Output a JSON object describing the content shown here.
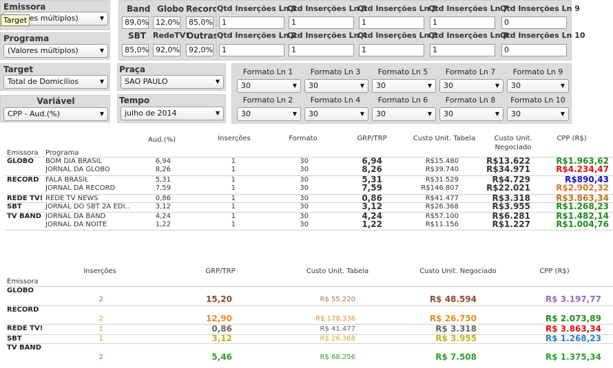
{
  "filters": {
    "emissora": {
      "label": "Emissora",
      "value": "(Valores múltiplos)"
    },
    "tooltip": "Target",
    "programa": {
      "label": "Programa",
      "value": "(Valores múltiplos)"
    },
    "target": {
      "label": "Target",
      "value": "Total de Domicílios"
    },
    "variavel": {
      "label": "Variável",
      "value": "CPP - Aud.(%)"
    },
    "praca": {
      "label": "Praça",
      "value": "SAO PAULO"
    },
    "tempo": {
      "label": "Tempo",
      "value": "julho de 2014"
    }
  },
  "shares": {
    "band": {
      "label": "Band",
      "value": "89,0%"
    },
    "globo": {
      "label": "Globo",
      "value": "12,0%"
    },
    "record": {
      "label": "Record",
      "value": "85,0%"
    },
    "sbt": {
      "label": "SBT",
      "value": "85,0%"
    },
    "redetv": {
      "label": "RedeTV!",
      "value": "92,0%"
    },
    "outras": {
      "label": "Outras",
      "value": "92,0%"
    }
  },
  "qtd": [
    {
      "label": "Qtd Inserções Ln 1",
      "value": "1"
    },
    {
      "label": "Qtd Inserções Ln 3",
      "value": "1"
    },
    {
      "label": "Qtd Inserções Ln 5",
      "value": "1"
    },
    {
      "label": "Qtd Inserções Ln 7",
      "value": "1"
    },
    {
      "label": "Qtd Inserções Ln 9",
      "value": "0"
    },
    {
      "label": "Qtd Inserções Ln 2",
      "value": "1"
    },
    {
      "label": "Qtd Inserções Ln 4",
      "value": "1"
    },
    {
      "label": "Qtd Inserções Ln 6",
      "value": "1"
    },
    {
      "label": "Qtd Inserções Ln 8",
      "value": "1"
    },
    {
      "label": "Qtd Inserções Ln 10",
      "value": "0"
    }
  ],
  "formato": [
    {
      "label": "Formato Ln 1",
      "value": "30"
    },
    {
      "label": "Formato Ln 3",
      "value": "30"
    },
    {
      "label": "Formato Ln 5",
      "value": "30"
    },
    {
      "label": "Formato Ln 7",
      "value": "30"
    },
    {
      "label": "Formato Ln 9",
      "value": "30"
    },
    {
      "label": "Formato Ln 2",
      "value": "30"
    },
    {
      "label": "Formato Ln 4",
      "value": "30"
    },
    {
      "label": "Formato Ln 6",
      "value": "30"
    },
    {
      "label": "Formato Ln 8",
      "value": "30"
    },
    {
      "label": "Formato Ln 10",
      "value": "30"
    }
  ],
  "table1": {
    "headers": {
      "emissora": "Emissora",
      "programa": "Programa",
      "aud": "Aud.(%)",
      "insercoes": "Inserções",
      "formato": "Formato",
      "grp": "GRP/TRP",
      "custo_tabela": "Custo Unit. Tabela",
      "custo_negociado_1": "Custo Unit.",
      "custo_negociado_2": "Negociado",
      "cpp": "CPP (R$)"
    },
    "rows": [
      {
        "emissora": "GLOBO",
        "programa": "BOM DIA BRASIL",
        "aud": "6,94",
        "ins": "1",
        "fmt": "30",
        "grp": "6,94",
        "tab": "R$15.480",
        "neg": "R$13.622",
        "cpp": "R$1.963,62",
        "cpp_color": "#1e8c1e"
      },
      {
        "emissora": "",
        "programa": "JORNAL DA GLOBO",
        "aud": "8,26",
        "ins": "1",
        "fmt": "30",
        "grp": "8,26",
        "tab": "R$39.740",
        "neg": "R$34.971",
        "cpp": "R$4.234,47",
        "cpp_color": "#e01010"
      },
      {
        "emissora": "RECORD",
        "programa": "FALA BRASIL",
        "aud": "5,31",
        "ins": "1",
        "fmt": "30",
        "grp": "5,31",
        "tab": "R$31.529",
        "neg": "R$4.729",
        "cpp": "R$890,43",
        "cpp_color": "#1010d0"
      },
      {
        "emissora": "",
        "programa": "JORNAL DA RECORD",
        "aud": "7,59",
        "ins": "1",
        "fmt": "30",
        "grp": "7,59",
        "tab": "R$146.807",
        "neg": "R$22.021",
        "cpp": "R$2.902,32",
        "cpp_color": "#d07a28"
      },
      {
        "emissora": "REDE TV!",
        "programa": "REDE TV NEWS",
        "aud": "0,86",
        "ins": "1",
        "fmt": "30",
        "grp": "0,86",
        "tab": "R$41.477",
        "neg": "R$3.318",
        "cpp": "R$3.863,34",
        "cpp_color": "#c07020"
      },
      {
        "emissora": "SBT",
        "programa": "JORNAL DO SBT 2A EDI..",
        "aud": "3,12",
        "ins": "1",
        "fmt": "30",
        "grp": "3,12",
        "tab": "R$26.368",
        "neg": "R$3.955",
        "cpp": "R$1.268,23",
        "cpp_color": "#1e8c1e"
      },
      {
        "emissora": "TV BAND",
        "programa": "JORNAL DA BAND",
        "aud": "4,24",
        "ins": "1",
        "fmt": "30",
        "grp": "4,24",
        "tab": "R$57.100",
        "neg": "R$6.281",
        "cpp": "R$1.482,14",
        "cpp_color": "#1e8c1e"
      },
      {
        "emissora": "",
        "programa": "JORNAL DA NOITE",
        "aud": "1,22",
        "ins": "1",
        "fmt": "30",
        "grp": "1,22",
        "tab": "R$11.156",
        "neg": "R$1.227",
        "cpp": "R$1.004,76",
        "cpp_color": "#1e8c1e"
      }
    ]
  },
  "table2": {
    "headers": {
      "emissora": "Emissora",
      "insercoes": "Inserções",
      "grp": "GRP/TRP",
      "tab": "Custo Unit. Tabela",
      "neg": "Custo Unit. Negociado",
      "cpp": "CPP (R$)"
    },
    "rows": [
      {
        "emissora": "GLOBO",
        "ins": "2",
        "grp": "15,20",
        "tab": "R$ 55.220",
        "neg": "R$ 48.594",
        "cpp": "R$ 3.197,77",
        "color": "#8c4a2a",
        "cpp_color": "#9a6ac0",
        "ins_color": "#b0601a",
        "tab_color": "#b07050"
      },
      {
        "emissora": "RECORD",
        "ins": "2",
        "grp": "12,90",
        "tab": "R$ 178.336",
        "neg": "R$ 26.750",
        "cpp": "R$ 2.073,89",
        "color": "#f08a1c",
        "cpp_color": "#1e8c1e",
        "ins_color": "#f08a1c",
        "tab_color": "#f08a1c"
      },
      {
        "emissora": "REDE TV!",
        "ins": "1",
        "grp": "0,86",
        "tab": "R$ 41.477",
        "neg": "R$ 3.318",
        "cpp": "R$ 3.863,34",
        "color": "#666666",
        "cpp_color": "#e01010",
        "ins_color": "#c8a020",
        "tab_color": "#666666"
      },
      {
        "emissora": "SBT",
        "ins": "1",
        "grp": "3,12",
        "tab": "R$ 26.368",
        "neg": "R$ 3.955",
        "cpp": "R$ 1.268,23",
        "color": "#c8b01a",
        "cpp_color": "#2a80c0",
        "ins_color": "#c8a020",
        "tab_color": "#c8b01a"
      },
      {
        "emissora": "TV BAND",
        "ins": "2",
        "grp": "5,46",
        "tab": "R$ 68.256",
        "neg": "R$ 7.508",
        "cpp": "R$ 1.375,34",
        "color": "#2aa02a",
        "cpp_color": "#2aa02a",
        "ins_color": "#2aa02a",
        "tab_color": "#2aa02a"
      }
    ]
  }
}
